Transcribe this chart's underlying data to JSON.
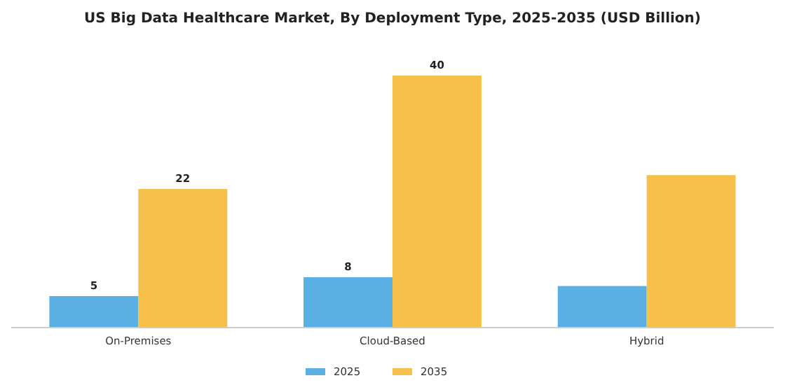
{
  "chart_data": {
    "type": "bar",
    "title": "US Big Data Healthcare Market, By Deployment Type, 2025-2035 (USD Billion)",
    "categories": [
      "On-Premises",
      "Cloud-Based",
      "Hybrid"
    ],
    "series": [
      {
        "name": "2025",
        "color": "#5aafe3",
        "values": [
          5,
          8,
          6.6
        ],
        "value_labels": [
          "5",
          "8",
          null
        ]
      },
      {
        "name": "2035",
        "color": "#f7c04a",
        "values": [
          22,
          40,
          24.2
        ],
        "value_labels": [
          "22",
          "40",
          null
        ]
      }
    ],
    "legend": "bottom",
    "grid": false
  }
}
